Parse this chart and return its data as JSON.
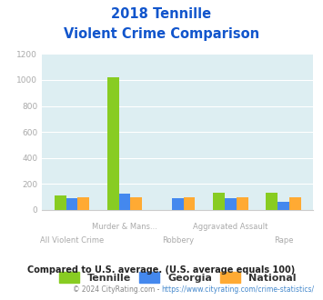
{
  "title_line1": "2018 Tennille",
  "title_line2": "Violent Crime Comparison",
  "tennille": [
    110,
    1020,
    0,
    130,
    130
  ],
  "georgia": [
    90,
    125,
    90,
    90,
    65
  ],
  "national": [
    100,
    100,
    100,
    100,
    100
  ],
  "tennille_color": "#88cc22",
  "georgia_color": "#4488ee",
  "national_color": "#ffaa33",
  "bg_color": "#ddeef2",
  "title_color": "#1155cc",
  "ylabel_color": "#aaaaaa",
  "xlabel_color": "#aaaaaa",
  "ylim": [
    0,
    1200
  ],
  "yticks": [
    0,
    200,
    400,
    600,
    800,
    1000,
    1200
  ],
  "footnote": "Compared to U.S. average. (U.S. average equals 100)",
  "copyright_text": "© 2024 CityRating.com - ",
  "copyright_url": "https://www.cityrating.com/crime-statistics/",
  "legend_labels": [
    "Tennille",
    "Georgia",
    "National"
  ],
  "bar_width": 0.22,
  "row1": [
    "",
    "Murder & Mans...",
    "",
    "Aggravated Assault",
    ""
  ],
  "row2": [
    "All Violent Crime",
    "",
    "Robbery",
    "",
    "Rape"
  ]
}
